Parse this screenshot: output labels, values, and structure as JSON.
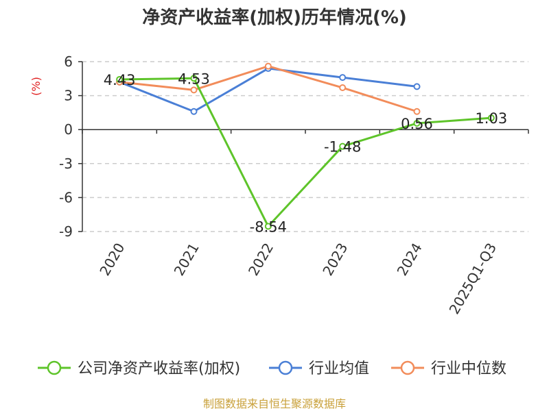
{
  "chart_data": {
    "type": "line",
    "title": "净资产收益率(加权)历年情况(%)",
    "ylabel": "(%)",
    "categories": [
      "2020",
      "2021",
      "2022",
      "2023",
      "2024",
      "2025Q1-Q3"
    ],
    "ylim": [
      -9,
      6
    ],
    "yticks": [
      6,
      3,
      0,
      -3,
      -6,
      -9
    ],
    "grid": true,
    "legend_position": "bottom",
    "series": [
      {
        "name": "公司净资产收益率(加权)",
        "color": "#5ec42a",
        "values": [
          4.43,
          4.53,
          -8.54,
          -1.48,
          0.56,
          1.03
        ],
        "labels": [
          "4.43",
          "4.53",
          "-8.54",
          "-1.48",
          "0.56",
          "1.03"
        ]
      },
      {
        "name": "行业均值",
        "color": "#4a7fd6",
        "values": [
          4.2,
          1.6,
          5.4,
          4.6,
          3.8,
          null
        ]
      },
      {
        "name": "行业中位数",
        "color": "#f28c5a",
        "values": [
          4.2,
          3.5,
          5.6,
          3.7,
          1.6,
          null
        ]
      }
    ],
    "source": "制图数据来自恒生聚源数据库"
  }
}
